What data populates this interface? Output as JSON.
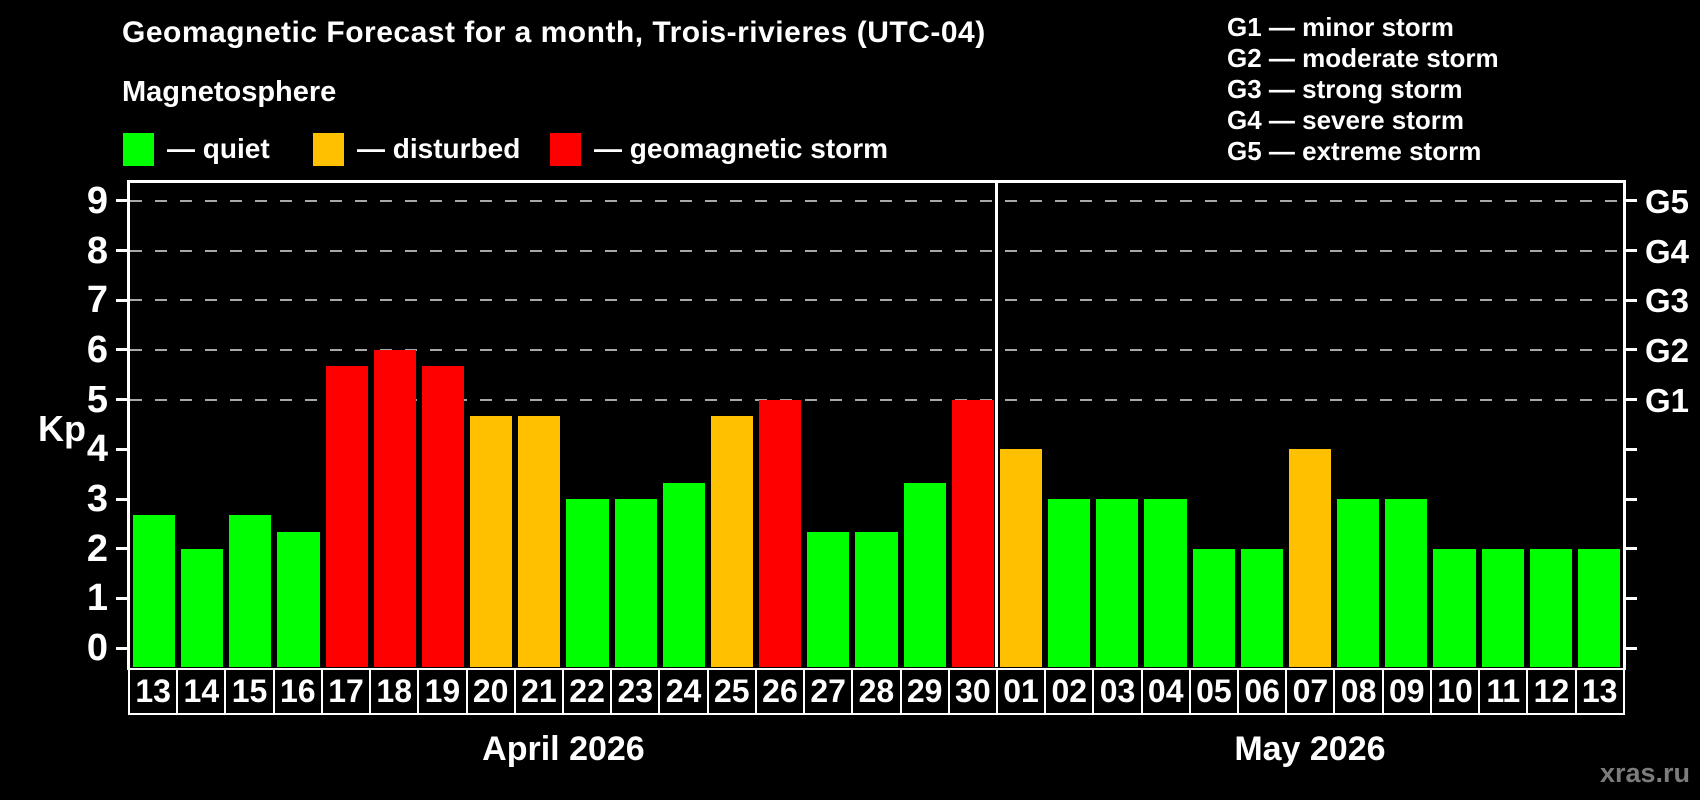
{
  "header": {
    "title": "Geomagnetic Forecast for a month, Trois-rivieres (UTC-04)",
    "subtitle": "Magnetosphere"
  },
  "legend": {
    "items": [
      {
        "status": "quiet",
        "label": "— quiet"
      },
      {
        "status": "disturbed",
        "label": "— disturbed"
      },
      {
        "status": "storm",
        "label": "— geomagnetic storm"
      }
    ]
  },
  "g_legend": {
    "items": [
      "G1 — minor storm",
      "G2 — moderate storm",
      "G3 — strong storm",
      "G4 — severe storm",
      "G5 — extreme storm"
    ]
  },
  "watermark": "xras.ru",
  "chart_data": {
    "type": "bar",
    "title": "Geomagnetic Forecast for a month, Trois-rivieres (UTC-04)",
    "ylabel": "Kp",
    "ylim": [
      0,
      9
    ],
    "y_ticks": [
      0,
      1,
      2,
      3,
      4,
      5,
      6,
      7,
      8,
      9
    ],
    "grid_levels": [
      5,
      6,
      7,
      8,
      9
    ],
    "right_axis": [
      {
        "kp": 5,
        "label": "G1"
      },
      {
        "kp": 6,
        "label": "G2"
      },
      {
        "kp": 7,
        "label": "G3"
      },
      {
        "kp": 8,
        "label": "G4"
      },
      {
        "kp": 9,
        "label": "G5"
      }
    ],
    "status_colors": {
      "quiet": "#00ff00",
      "disturbed": "#ffc000",
      "storm": "#ff0000"
    },
    "legend_position": "top-left",
    "grid": "dashed horizontal at storm levels only",
    "months": [
      {
        "label": "April 2026",
        "bars": [
          {
            "day": "13",
            "kp": 2.67,
            "status": "quiet"
          },
          {
            "day": "14",
            "kp": 2.0,
            "status": "quiet"
          },
          {
            "day": "15",
            "kp": 2.67,
            "status": "quiet"
          },
          {
            "day": "16",
            "kp": 2.33,
            "status": "quiet"
          },
          {
            "day": "17",
            "kp": 5.67,
            "status": "storm"
          },
          {
            "day": "18",
            "kp": 6.0,
            "status": "storm"
          },
          {
            "day": "19",
            "kp": 5.67,
            "status": "storm"
          },
          {
            "day": "20",
            "kp": 4.67,
            "status": "disturbed"
          },
          {
            "day": "21",
            "kp": 4.67,
            "status": "disturbed"
          },
          {
            "day": "22",
            "kp": 3.0,
            "status": "quiet"
          },
          {
            "day": "23",
            "kp": 3.0,
            "status": "quiet"
          },
          {
            "day": "24",
            "kp": 3.33,
            "status": "quiet"
          },
          {
            "day": "25",
            "kp": 4.67,
            "status": "disturbed"
          },
          {
            "day": "26",
            "kp": 5.0,
            "status": "storm"
          },
          {
            "day": "27",
            "kp": 2.33,
            "status": "quiet"
          },
          {
            "day": "28",
            "kp": 2.33,
            "status": "quiet"
          },
          {
            "day": "29",
            "kp": 3.33,
            "status": "quiet"
          },
          {
            "day": "30",
            "kp": 5.0,
            "status": "storm"
          }
        ]
      },
      {
        "label": "May 2026",
        "bars": [
          {
            "day": "01",
            "kp": 4.0,
            "status": "disturbed"
          },
          {
            "day": "02",
            "kp": 3.0,
            "status": "quiet"
          },
          {
            "day": "03",
            "kp": 3.0,
            "status": "quiet"
          },
          {
            "day": "04",
            "kp": 3.0,
            "status": "quiet"
          },
          {
            "day": "05",
            "kp": 2.0,
            "status": "quiet"
          },
          {
            "day": "06",
            "kp": 2.0,
            "status": "quiet"
          },
          {
            "day": "07",
            "kp": 4.0,
            "status": "disturbed"
          },
          {
            "day": "08",
            "kp": 3.0,
            "status": "quiet"
          },
          {
            "day": "09",
            "kp": 3.0,
            "status": "quiet"
          },
          {
            "day": "10",
            "kp": 2.0,
            "status": "quiet"
          },
          {
            "day": "11",
            "kp": 2.0,
            "status": "quiet"
          },
          {
            "day": "12",
            "kp": 2.0,
            "status": "quiet"
          },
          {
            "day": "13",
            "kp": 2.0,
            "status": "quiet"
          }
        ]
      }
    ]
  }
}
